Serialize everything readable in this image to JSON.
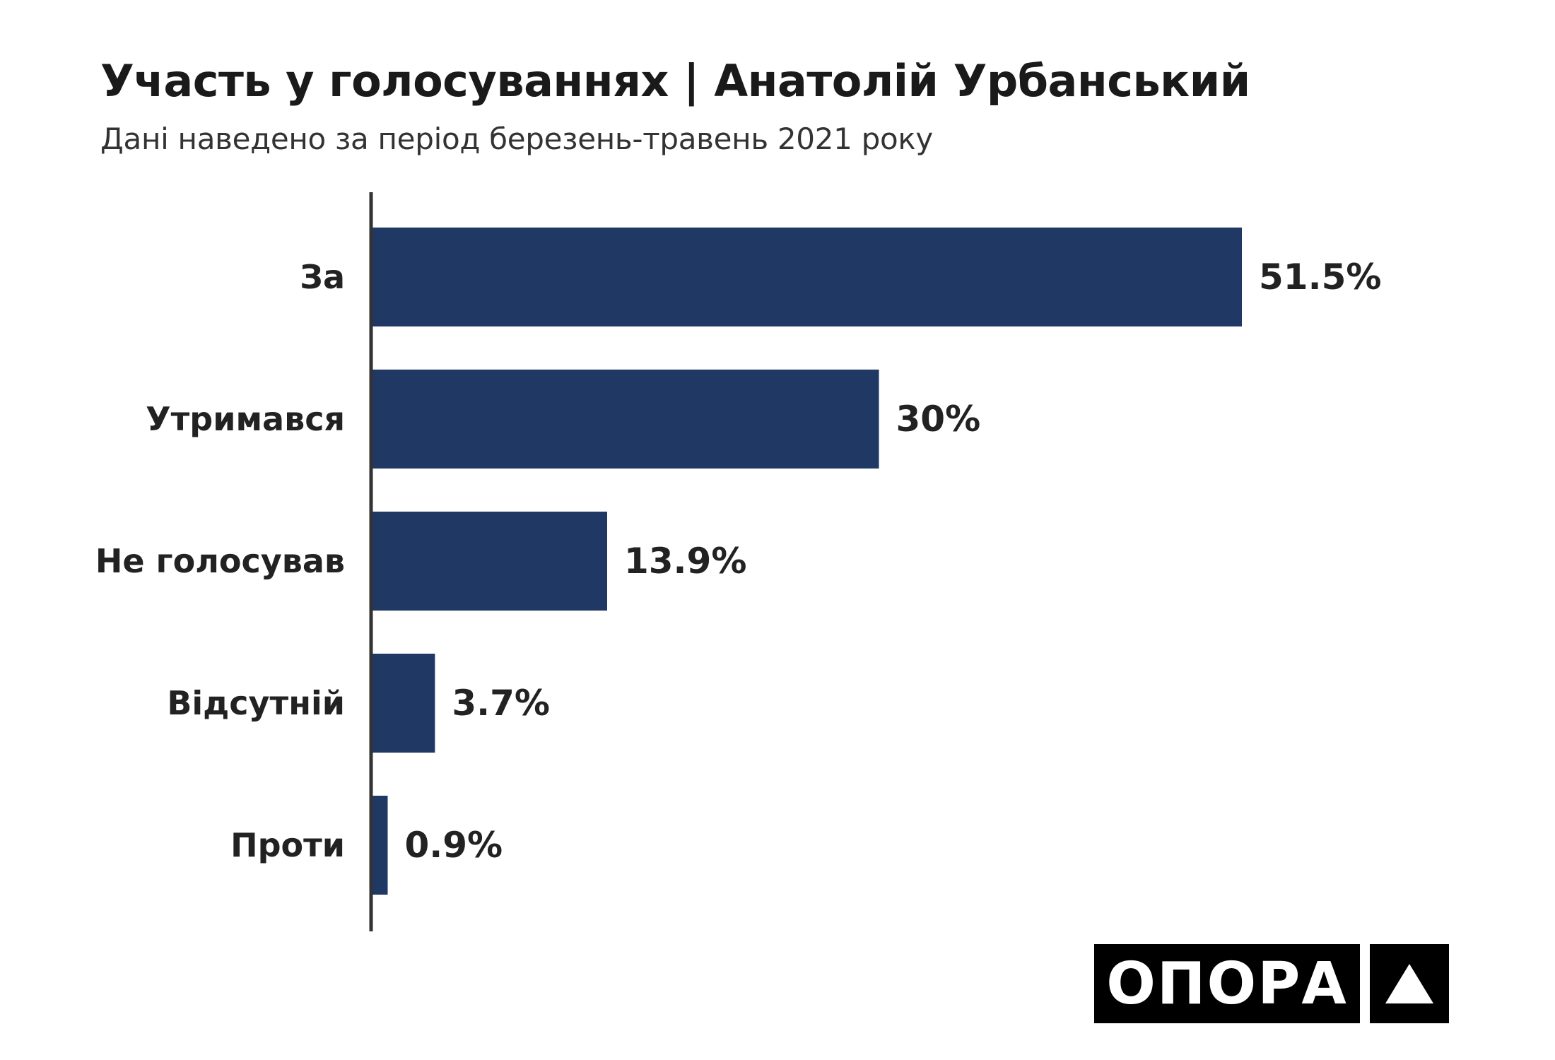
{
  "header": {
    "title": "Участь у голосуваннях | Анатолій Урбанський",
    "subtitle": "Дані наведено за період березень-травень 2021 року"
  },
  "chart_data": {
    "type": "bar",
    "orientation": "horizontal",
    "categories": [
      "За",
      "Утримався",
      "Не голосував",
      "Відсутній",
      "Проти"
    ],
    "values": [
      51.5,
      30,
      13.9,
      3.7,
      0.9
    ],
    "value_labels": [
      "51.5%",
      "30%",
      "13.9%",
      "3.7%",
      "0.9%"
    ],
    "unit": "%",
    "xlim": [
      0,
      51.5
    ],
    "grid": false,
    "legend": "none",
    "bar_color": "#1f3864",
    "axis_color": "#333333"
  },
  "logo": {
    "text": "ОПОРА",
    "icon": "triangle-icon"
  }
}
